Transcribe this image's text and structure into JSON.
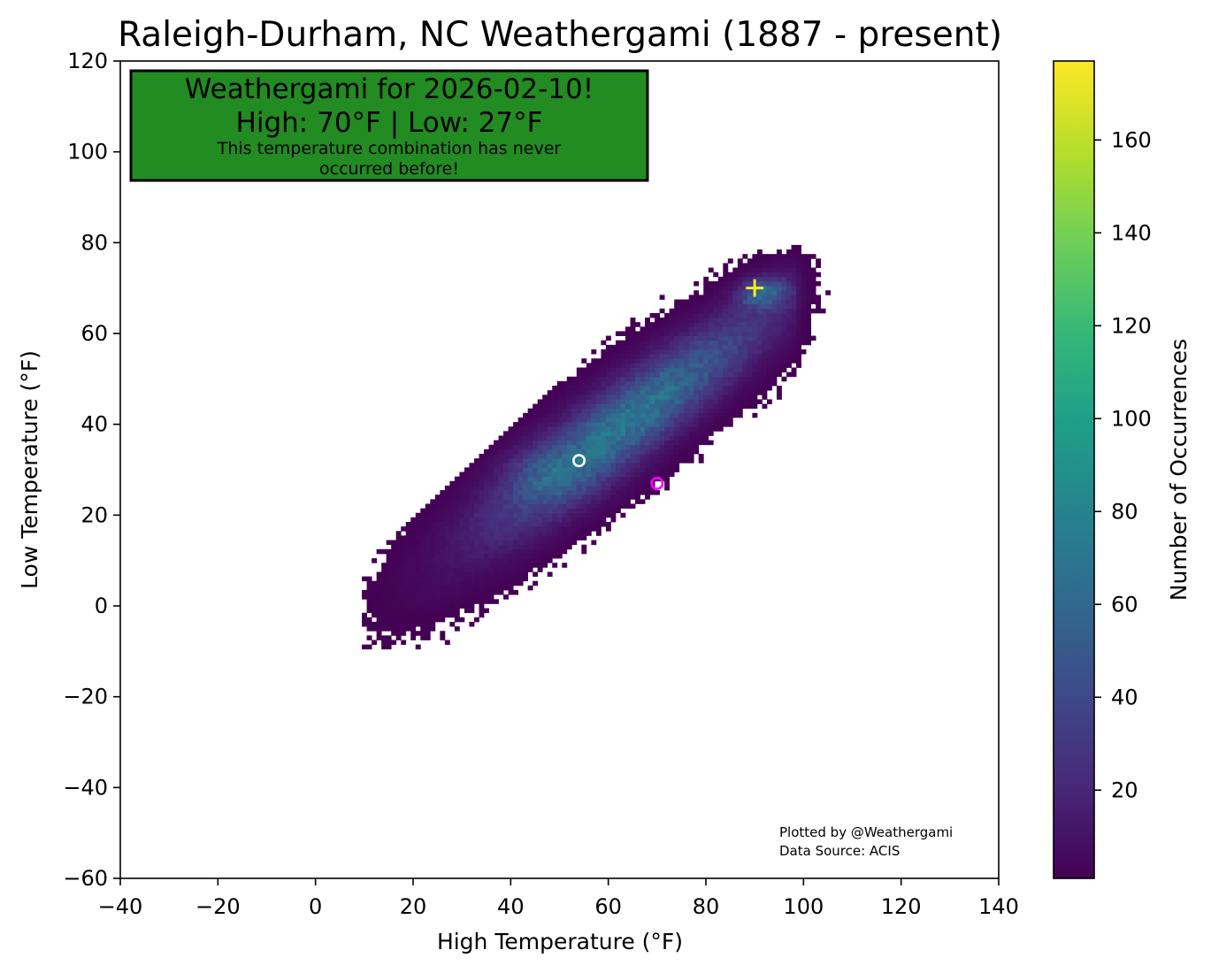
{
  "chart_data": {
    "type": "heatmap",
    "title": "Raleigh-Durham, NC Weathergami (1887 - present)",
    "xlabel": "High Temperature (°F)",
    "ylabel": "Low Temperature (°F)",
    "xlim": [
      -40,
      140
    ],
    "ylim": [
      -60,
      120
    ],
    "x_ticks": [
      -40,
      -20,
      0,
      20,
      40,
      60,
      80,
      100,
      120,
      140
    ],
    "y_ticks": [
      -60,
      -40,
      -20,
      0,
      20,
      40,
      60,
      80,
      100,
      120
    ],
    "bin_size_f": 1,
    "distribution_estimate": {
      "description": "Daily high/low pairs, density concentrated along a diagonal band",
      "mode_high_f": 90,
      "mode_low_f": 70,
      "mode_count": 177,
      "high_range_f": [
        10,
        106
      ],
      "low_range_f": [
        -9,
        80
      ]
    },
    "colorbar": {
      "label": "Number of Occurrences",
      "min": 1,
      "max": 177,
      "ticks": [
        20,
        40,
        60,
        80,
        100,
        120,
        140,
        160
      ],
      "colormap": "viridis",
      "stops": [
        "#440154",
        "#482878",
        "#3e4989",
        "#31688e",
        "#26828e",
        "#1f9e89",
        "#35b779",
        "#6ece58",
        "#b5de2b",
        "#fde725"
      ]
    },
    "markers": [
      {
        "name": "median",
        "high": 54,
        "low": 32,
        "style": "hollow-circle",
        "color": "#ffffff"
      },
      {
        "name": "today",
        "high": 70,
        "low": 27,
        "style": "hollow-circle",
        "color": "#ff00ff"
      },
      {
        "name": "most-common",
        "high": 90,
        "low": 70,
        "style": "plus",
        "color": "#fde725"
      }
    ],
    "banner": {
      "line1": "Weathergami for 2026-02-10!",
      "line2": "High: 70°F  |  Low: 27°F",
      "line3a": "This temperature combination has never",
      "line3b": "occurred before!",
      "background": "#228b22"
    },
    "credits": {
      "line1": "Plotted by @Weathergami",
      "line2": "Data Source: ACIS"
    }
  }
}
